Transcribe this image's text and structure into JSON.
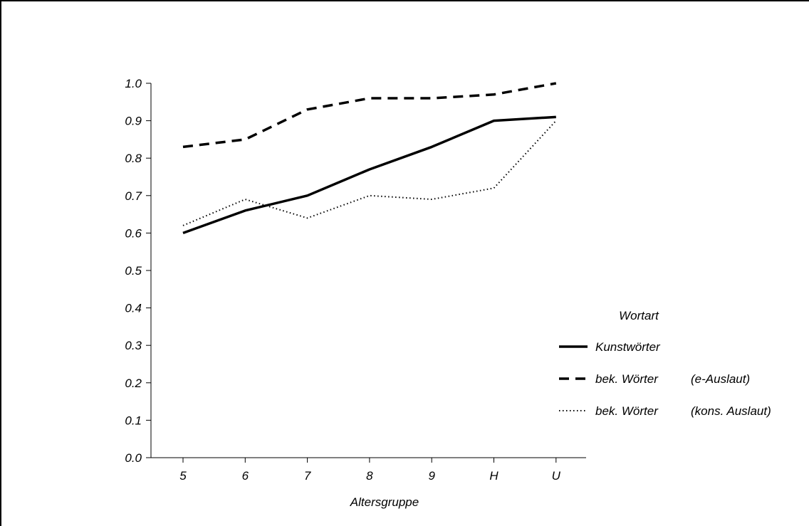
{
  "chart_data": {
    "type": "line",
    "categories": [
      "5",
      "6",
      "7",
      "8",
      "9",
      "H",
      "U"
    ],
    "xlabel": "Altersgruppe",
    "ylabel": "",
    "ylim": [
      0,
      1
    ],
    "yticks": [
      "0.0",
      "0.1",
      "0.2",
      "0.3",
      "0.4",
      "0.5",
      "0.6",
      "0.7",
      "0.8",
      "0.9",
      "1.0"
    ],
    "grid": false,
    "legend_position": "right",
    "legend_title": "Wortart",
    "series": [
      {
        "name": "Kunstwörter",
        "note": "",
        "style": "solid",
        "values": [
          0.6,
          0.66,
          0.7,
          0.77,
          0.83,
          0.9,
          0.91
        ]
      },
      {
        "name": "bek. Wörter",
        "note": "(e-Auslaut)",
        "style": "dashed",
        "values": [
          0.83,
          0.85,
          0.93,
          0.96,
          0.96,
          0.97,
          1.0
        ]
      },
      {
        "name": "bek. Wörter",
        "note": "(kons. Auslaut)",
        "style": "dotted",
        "values": [
          0.62,
          0.69,
          0.64,
          0.7,
          0.69,
          0.72,
          0.9
        ]
      }
    ],
    "colors": {
      "line": "#000000",
      "background": "#ffffff"
    }
  }
}
